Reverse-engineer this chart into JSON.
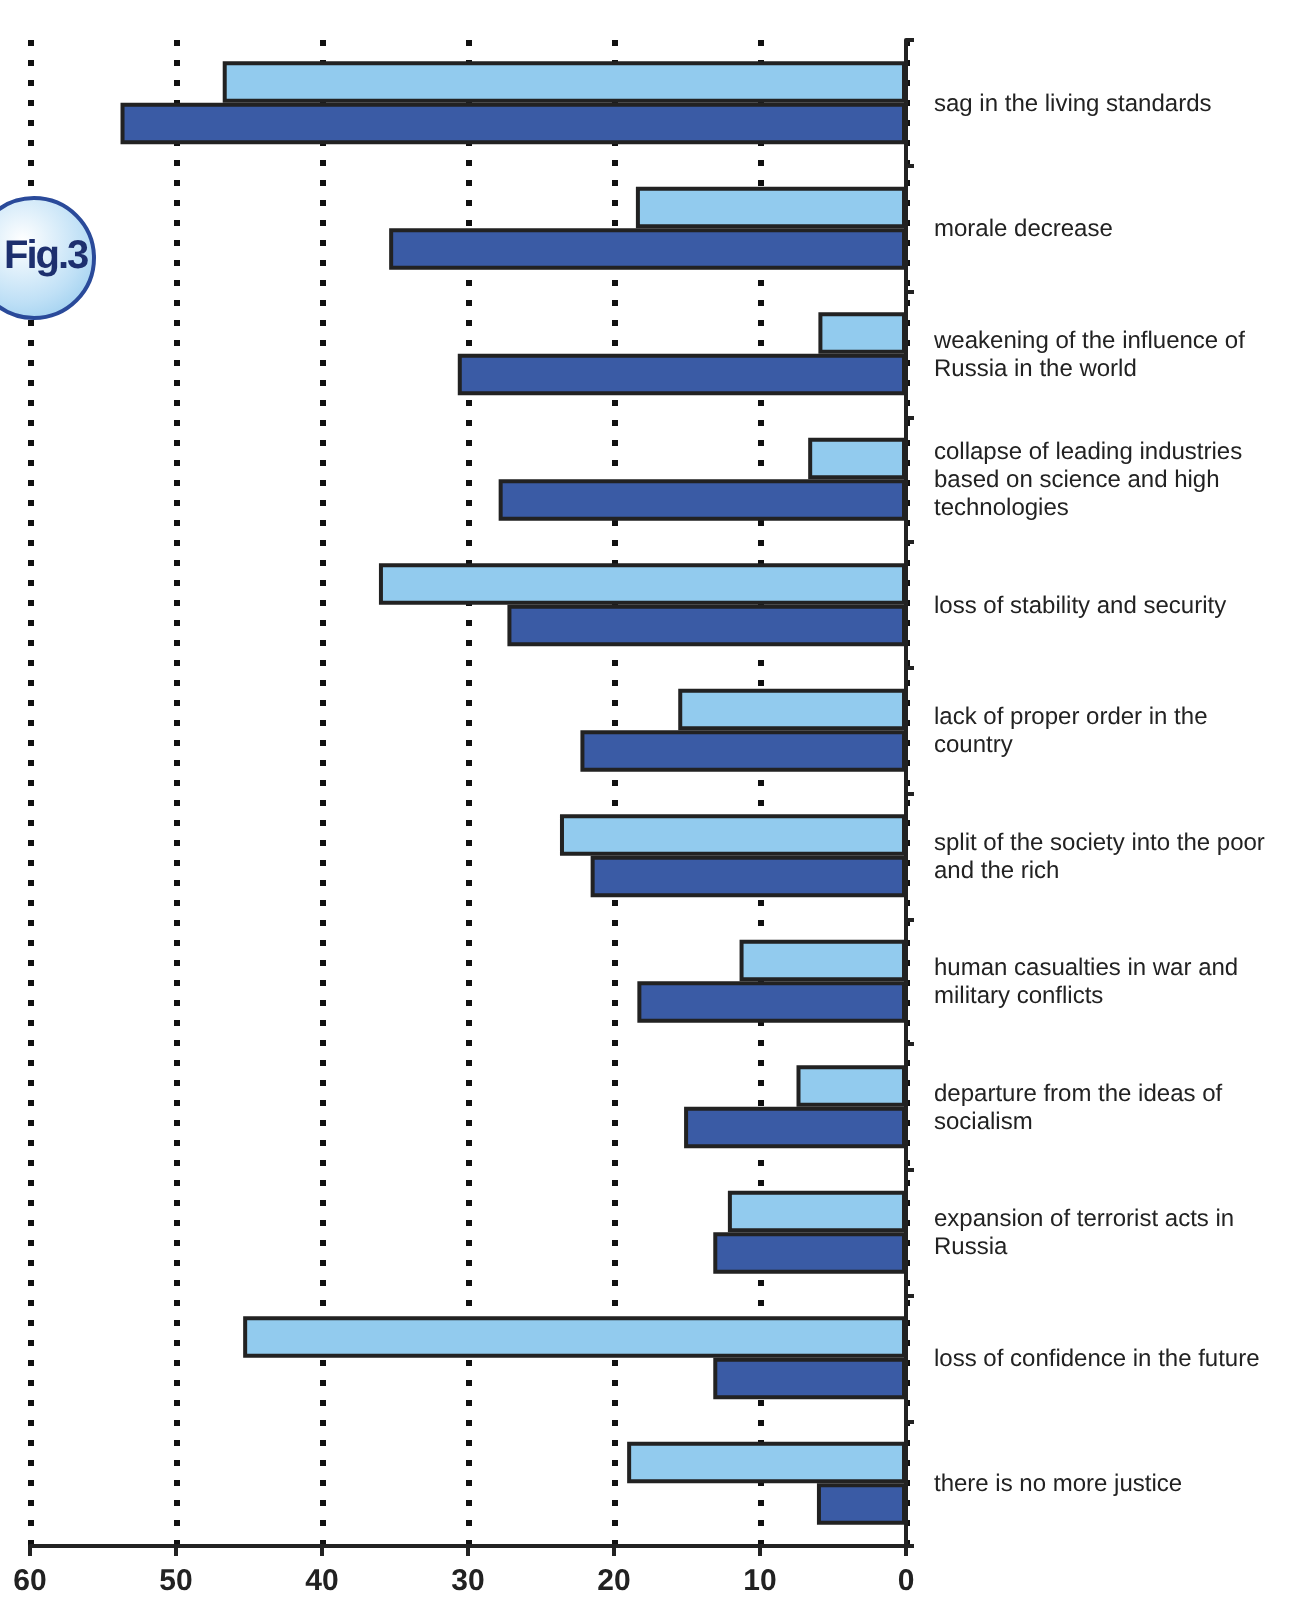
{
  "chart_data": {
    "type": "bar",
    "orientation": "horizontal",
    "categories": [
      "sag in the living standards",
      "morale decrease",
      "weakening of the influence of Russia in the world",
      "collapse of leading industries based on science and high technologies",
      "loss of stability and security",
      "lack of proper order in the country",
      "split of the society into the poor and the rich",
      "human casualties in war and military conflicts",
      "departure from the ideas of socialism",
      "expansion of terrorist acts in Russia",
      "loss of confidence in the future",
      "there is no more justice"
    ],
    "series": [
      {
        "color": "#92cbee",
        "values": [
          46.8,
          18.5,
          6.0,
          6.7,
          36.1,
          15.6,
          23.7,
          11.4,
          7.5,
          12.2,
          45.4,
          19.1
        ]
      },
      {
        "color": "#3a5ba5",
        "values": [
          53.8,
          35.4,
          30.7,
          27.9,
          27.3,
          22.3,
          21.6,
          18.4,
          15.2,
          13.2,
          13.2,
          6.1
        ]
      }
    ],
    "xlim": [
      60,
      0
    ],
    "xticks": [
      60,
      50,
      40,
      30,
      20,
      10,
      0
    ],
    "grid": "x",
    "annotations": [
      "Fig.3"
    ]
  }
}
